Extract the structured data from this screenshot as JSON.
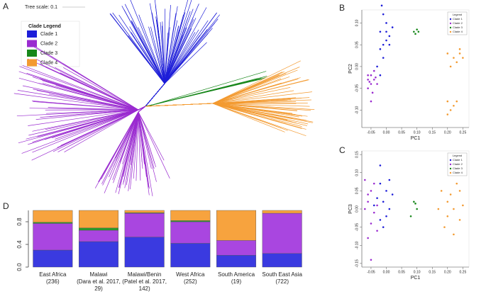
{
  "panel_labels": [
    "A",
    "B",
    "C",
    "D"
  ],
  "tree": {
    "scale_label": "Tree scale: 0.1",
    "legend_title": "Clade Legend",
    "legend": [
      {
        "name": "Clade 1",
        "color": "#1d1dd8"
      },
      {
        "name": "Clade 2",
        "color": "#9a2bd0"
      },
      {
        "name": "Clade 3",
        "color": "#17871a"
      },
      {
        "name": "Clade 4",
        "color": "#f39a30"
      }
    ]
  },
  "chart_data": [
    {
      "type": "scatter",
      "x_label": "PC1",
      "y_label": "PC2",
      "legend_title": "Legend",
      "xlim": [
        -0.08,
        0.27
      ],
      "xticks": [
        -0.05,
        {
          "value": 0,
          "label": "0.00"
        },
        0.05,
        {
          "value": 0.1,
          "label": "0.10"
        },
        0.15,
        {
          "value": 0.2,
          "label": "0.20"
        },
        0.25
      ],
      "ylim": [
        -0.14,
        0.13
      ],
      "yticks": [
        {
          "value": -0.1,
          "label": "-0.10"
        },
        -0.05,
        {
          "value": 0,
          "label": "0.00"
        },
        0.05,
        {
          "value": 0.1,
          "label": "0.10"
        }
      ],
      "series": [
        {
          "name": "Clade 1",
          "color": "#1d1dd8",
          "x": [
            -0.01,
            0.0,
            -0.02,
            0.01,
            -0.01,
            0.0,
            -0.02,
            0.02,
            -0.01,
            -0.03,
            -0.02,
            0.0,
            -0.015,
            0.01
          ],
          "values": [
            0.12,
            0.1,
            0.08,
            0.07,
            0.05,
            0.06,
            0.04,
            0.09,
            0.02,
            0.0,
            -0.02,
            0.08,
            0.14,
            0.05
          ]
        },
        {
          "name": "Clade 2",
          "color": "#9a2bd0",
          "x": [
            -0.06,
            -0.05,
            -0.04,
            -0.05,
            -0.06,
            -0.04,
            -0.05,
            -0.03,
            -0.06,
            -0.045,
            -0.055,
            -0.035
          ],
          "values": [
            -0.03,
            -0.02,
            -0.03,
            -0.04,
            -0.05,
            -0.01,
            -0.08,
            -0.04,
            -0.02,
            -0.06,
            -0.035,
            -0.025
          ]
        },
        {
          "name": "Clade 3",
          "color": "#17871a",
          "x": [
            0.09,
            0.1,
            0.095,
            0.105
          ],
          "values": [
            0.08,
            0.085,
            0.075,
            0.08
          ]
        },
        {
          "name": "Clade 4",
          "color": "#f39a30",
          "x": [
            0.2,
            0.22,
            0.24,
            0.23,
            0.25,
            0.21,
            0.24,
            0.2,
            0.22,
            0.21,
            0.23,
            0.2
          ],
          "values": [
            0.03,
            0.02,
            0.04,
            0.01,
            0.02,
            0.0,
            0.03,
            -0.08,
            -0.09,
            -0.1,
            -0.08,
            -0.11
          ]
        }
      ]
    },
    {
      "type": "scatter",
      "x_label": "PC1",
      "y_label": "PC3",
      "legend_title": "Legend",
      "xlim": [
        -0.08,
        0.27
      ],
      "xticks": [
        -0.05,
        {
          "value": 0,
          "label": "0.00"
        },
        0.05,
        {
          "value": 0.1,
          "label": "0.10"
        },
        0.15,
        {
          "value": 0.2,
          "label": "0.20"
        },
        0.25
      ],
      "ylim": [
        -0.16,
        0.16
      ],
      "yticks": [
        -0.15,
        {
          "value": -0.1,
          "label": "-0.10"
        },
        -0.05,
        {
          "value": 0,
          "label": "0.00"
        },
        0.05,
        {
          "value": 0.1,
          "label": "0.10"
        },
        0.15
      ],
      "series": [
        {
          "name": "Clade 1",
          "color": "#1d1dd8",
          "x": [
            -0.02,
            0.0,
            -0.01,
            0.01,
            -0.03,
            0.0,
            -0.02,
            0.02,
            -0.01,
            -0.04,
            0.01,
            -0.02
          ],
          "values": [
            0.12,
            0.05,
            0.02,
            0.0,
            0.03,
            -0.02,
            0.07,
            0.04,
            -0.05,
            0.01,
            0.08,
            -0.03
          ]
        },
        {
          "name": "Clade 2",
          "color": "#9a2bd0",
          "x": [
            -0.06,
            -0.05,
            -0.04,
            -0.07,
            -0.05,
            -0.03,
            -0.06,
            -0.04,
            -0.05,
            -0.06,
            -0.03,
            -0.07
          ],
          "values": [
            0.02,
            0.05,
            -0.01,
            0.0,
            -0.04,
            0.01,
            -0.08,
            0.07,
            -0.14,
            0.04,
            -0.06,
            0.08
          ]
        },
        {
          "name": "Clade 3",
          "color": "#17871a",
          "x": [
            0.09,
            0.1,
            0.095,
            0.08
          ],
          "values": [
            0.02,
            0.0,
            0.015,
            -0.02
          ]
        },
        {
          "name": "Clade 4",
          "color": "#f39a30",
          "x": [
            0.18,
            0.2,
            0.22,
            0.24,
            0.21,
            0.23,
            0.19,
            0.25,
            0.22,
            0.17,
            0.24,
            0.2
          ],
          "values": [
            0.05,
            0.02,
            0.0,
            -0.03,
            0.04,
            0.07,
            -0.05,
            0.01,
            -0.07,
            0.0,
            0.05,
            -0.02
          ]
        }
      ]
    },
    {
      "type": "bar",
      "stacked": true,
      "categories": [
        "East Africa\n(236)",
        "Malawi\n(Dara et al. 2017,\n29)",
        "Malawi/Benin\n(Patel et al. 2017,\n142)",
        "West Africa\n(252)",
        "South America\n(19)",
        "South East Asia\n(722)"
      ],
      "ylim": [
        0,
        1
      ],
      "yticks": [
        {
          "value": 0,
          "label": "0.0"
        },
        0.4,
        0.8
      ],
      "series": [
        {
          "name": "Clade 1",
          "color": "#3a3ae0",
          "values": [
            0.3,
            0.45,
            0.53,
            0.42,
            0.21,
            0.24
          ]
        },
        {
          "name": "Clade 2",
          "color": "#a946e0",
          "values": [
            0.47,
            0.2,
            0.42,
            0.38,
            0.26,
            0.71
          ]
        },
        {
          "name": "Clade 3",
          "color": "#2b9a2b",
          "values": [
            0.02,
            0.04,
            0.01,
            0.02,
            0,
            0
          ]
        },
        {
          "name": "Clade 4",
          "color": "#f7a33e",
          "values": [
            0.21,
            0.31,
            0.04,
            0.18,
            0.53,
            0.05
          ]
        }
      ]
    }
  ]
}
